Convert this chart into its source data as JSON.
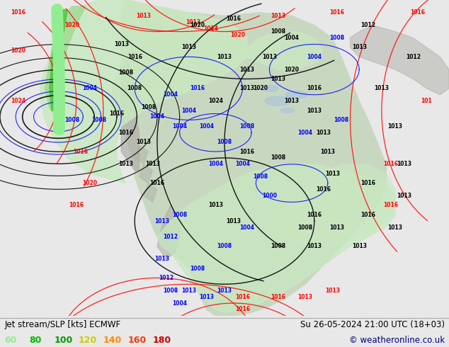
{
  "title_left": "Jet stream/SLP [kts] ECMWF",
  "title_right": "Su 26-05-2024 21:00 UTC (18+03)",
  "copyright": "© weatheronline.co.uk",
  "legend_values": [
    "60",
    "80",
    "100",
    "120",
    "140",
    "160",
    "180"
  ],
  "legend_colors": [
    "#90ee90",
    "#00bb00",
    "#009900",
    "#cccc00",
    "#ff8800",
    "#ff3300",
    "#cc0000"
  ],
  "bg_color": "#e8e8e8",
  "figsize": [
    6.34,
    4.9
  ],
  "dpi": 100,
  "bottom_bar_color": "#d0d8e0",
  "font_size_title": 8.5,
  "font_size_legend": 9,
  "font_size_copyright": 8.5
}
